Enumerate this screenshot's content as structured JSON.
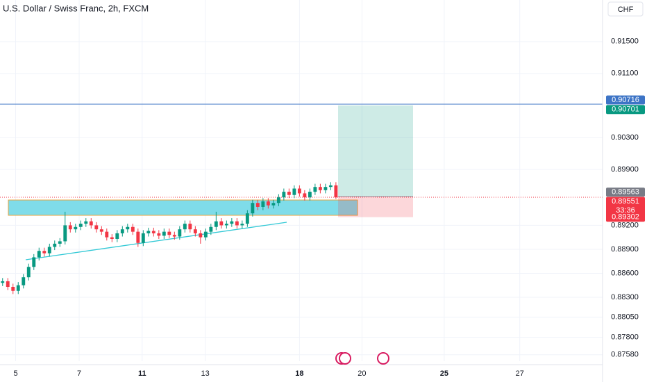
{
  "chart_data": {
    "type": "candlestick",
    "title": "U.S. Dollar / Swiss Franc, 2h, FXCM",
    "currency": "CHF",
    "up_color": "#089981",
    "down_color": "#f23645",
    "open": [
      0.8848,
      0.885,
      0.8843,
      0.8838,
      0.8845,
      0.8855,
      0.8868,
      0.888,
      0.8888,
      0.8885,
      0.8893,
      0.8897,
      0.89,
      0.892,
      0.8915,
      0.8918,
      0.8922,
      0.8925,
      0.892,
      0.8915,
      0.8912,
      0.8905,
      0.8903,
      0.891,
      0.8915,
      0.8918,
      0.8912,
      0.8898,
      0.891,
      0.8913,
      0.891,
      0.8907,
      0.8912,
      0.8908,
      0.8906,
      0.8915,
      0.8922,
      0.8915,
      0.891,
      0.8905,
      0.8912,
      0.8918,
      0.8925,
      0.892,
      0.8922,
      0.8925,
      0.892,
      0.8922,
      0.8935,
      0.8948,
      0.8943,
      0.895,
      0.8945,
      0.8948,
      0.8955,
      0.8962,
      0.8958,
      0.8966,
      0.896,
      0.8955,
      0.8962,
      0.8968,
      0.8964,
      0.8968,
      0.897
    ],
    "high": [
      0.8854,
      0.8854,
      0.8847,
      0.8849,
      0.8859,
      0.8872,
      0.8884,
      0.8892,
      0.8892,
      0.8897,
      0.8901,
      0.8904,
      0.8937,
      0.8924,
      0.8922,
      0.8926,
      0.8929,
      0.8929,
      0.8924,
      0.8919,
      0.8916,
      0.8909,
      0.8914,
      0.8919,
      0.8922,
      0.8922,
      0.8916,
      0.8914,
      0.8917,
      0.8917,
      0.8914,
      0.8916,
      0.8916,
      0.8912,
      0.8919,
      0.8926,
      0.8926,
      0.8919,
      0.8914,
      0.8916,
      0.8922,
      0.8937,
      0.8929,
      0.8926,
      0.8929,
      0.8929,
      0.8926,
      0.8939,
      0.8952,
      0.8952,
      0.8954,
      0.8954,
      0.8952,
      0.8959,
      0.8966,
      0.8966,
      0.897,
      0.897,
      0.8964,
      0.8966,
      0.8972,
      0.8972,
      0.8972,
      0.8974,
      0.8974
    ],
    "low": [
      0.8844,
      0.8839,
      0.8834,
      0.8834,
      0.8841,
      0.8851,
      0.8864,
      0.8876,
      0.8881,
      0.8881,
      0.8889,
      0.8893,
      0.8896,
      0.8911,
      0.8911,
      0.8914,
      0.8918,
      0.8916,
      0.8911,
      0.8908,
      0.8901,
      0.8899,
      0.8899,
      0.8906,
      0.8911,
      0.8908,
      0.8893,
      0.8894,
      0.8906,
      0.8906,
      0.8903,
      0.8903,
      0.8904,
      0.8902,
      0.8902,
      0.8911,
      0.8911,
      0.8906,
      0.8897,
      0.8901,
      0.8908,
      0.8914,
      0.8916,
      0.8916,
      0.8918,
      0.8916,
      0.8916,
      0.8918,
      0.8931,
      0.8939,
      0.8939,
      0.8941,
      0.8941,
      0.8944,
      0.8951,
      0.8954,
      0.8954,
      0.8956,
      0.8951,
      0.8951,
      0.8958,
      0.896,
      0.896,
      0.8964,
      0.8953
    ],
    "close": [
      0.885,
      0.8843,
      0.8838,
      0.8845,
      0.8855,
      0.8868,
      0.888,
      0.8888,
      0.8885,
      0.8893,
      0.8897,
      0.89,
      0.892,
      0.8915,
      0.8918,
      0.8922,
      0.8925,
      0.892,
      0.8915,
      0.8912,
      0.8905,
      0.8903,
      0.891,
      0.8915,
      0.8918,
      0.8912,
      0.8898,
      0.891,
      0.8913,
      0.891,
      0.8907,
      0.8912,
      0.8908,
      0.8906,
      0.8915,
      0.8922,
      0.8915,
      0.891,
      0.8905,
      0.8912,
      0.8918,
      0.8925,
      0.892,
      0.8922,
      0.8925,
      0.892,
      0.8922,
      0.8935,
      0.8948,
      0.8943,
      0.895,
      0.8945,
      0.8948,
      0.8955,
      0.8962,
      0.8958,
      0.8966,
      0.896,
      0.8955,
      0.8962,
      0.8968,
      0.8964,
      0.8968,
      0.897,
      0.8955
    ],
    "xlim": [
      -0.5,
      115.2
    ],
    "xticks": [
      {
        "value": 2.5,
        "label": "5"
      },
      {
        "value": 14.7,
        "label": "7"
      },
      {
        "value": 26.8,
        "label": "11"
      },
      {
        "value": 38.9,
        "label": "13"
      },
      {
        "value": 57,
        "label": "18"
      },
      {
        "value": 69,
        "label": "20"
      },
      {
        "value": 84.8,
        "label": "25"
      },
      {
        "value": 99.3,
        "label": "27"
      }
    ],
    "ylim": [
      0.875,
      0.9202
    ],
    "yticks": [
      {
        "value": 0.915,
        "label": "0.91500"
      },
      {
        "value": 0.911,
        "label": "0.91100"
      },
      {
        "value": 0.903,
        "label": "0.90300"
      },
      {
        "value": 0.899,
        "label": "0.89900"
      },
      {
        "value": 0.892,
        "label": "0.89200"
      },
      {
        "value": 0.889,
        "label": "0.88900"
      },
      {
        "value": 0.886,
        "label": "0.88600"
      },
      {
        "value": 0.883,
        "label": "0.88300"
      },
      {
        "value": 0.8805,
        "label": "0.88050"
      },
      {
        "value": 0.878,
        "label": "0.87800"
      },
      {
        "value": 0.8758,
        "label": "0.87580"
      }
    ],
    "grid": true,
    "price_labels": [
      {
        "value": 0.90716,
        "color": "#3d74c6"
      },
      {
        "value": 0.90701,
        "color": "#089981"
      },
      {
        "value": 0.89563,
        "color": "#787b86"
      },
      {
        "value": 0.89551,
        "color": "#f23645"
      },
      {
        "value": 0.89302,
        "color": "#f23645"
      }
    ],
    "countdown": "33:36"
  }
}
